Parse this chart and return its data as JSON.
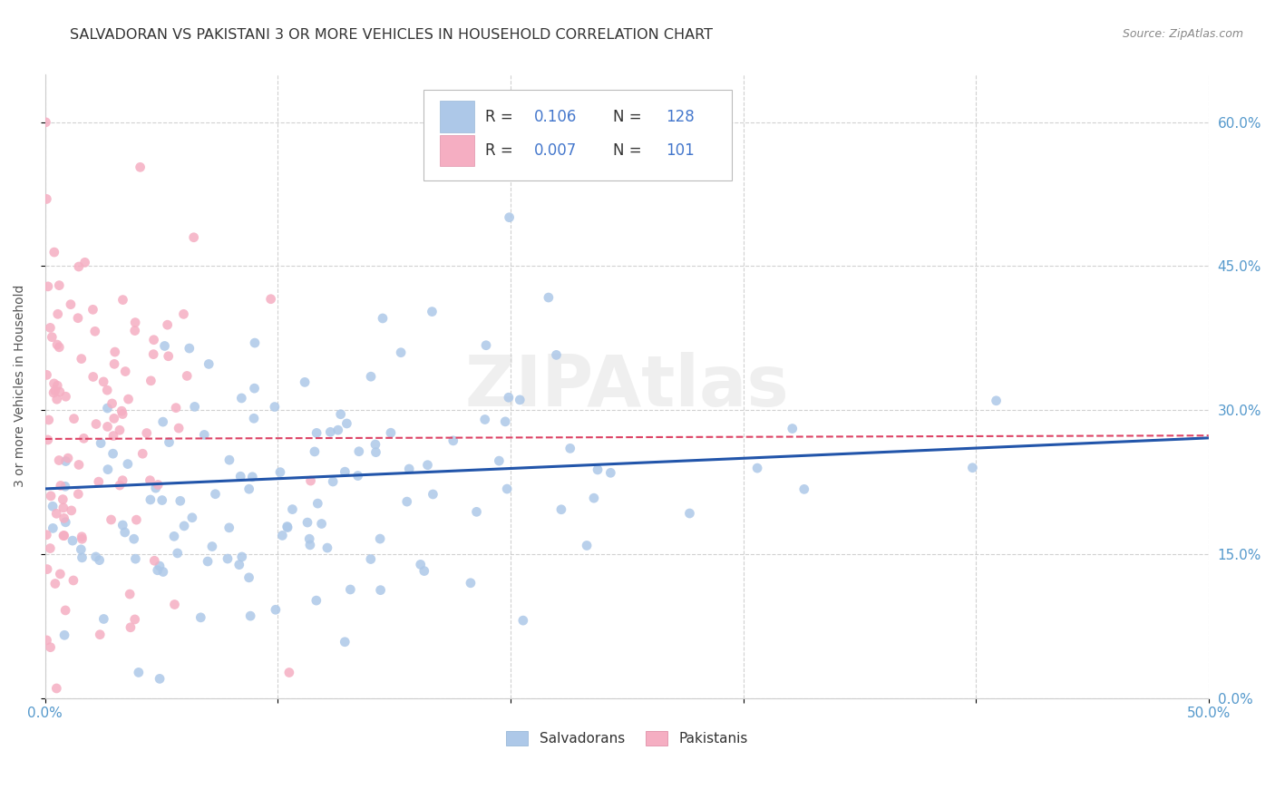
{
  "title": "SALVADORAN VS PAKISTANI 3 OR MORE VEHICLES IN HOUSEHOLD CORRELATION CHART",
  "source": "Source: ZipAtlas.com",
  "ylabel": "3 or more Vehicles in Household",
  "xlim": [
    0.0,
    0.5
  ],
  "ylim": [
    0.0,
    0.65
  ],
  "xticks": [
    0.0,
    0.1,
    0.2,
    0.3,
    0.4,
    0.5
  ],
  "xticklabels": [
    "0.0%",
    "",
    "",
    "",
    "",
    "50.0%"
  ],
  "yticks": [
    0.0,
    0.15,
    0.3,
    0.45,
    0.6
  ],
  "yticklabels": [
    "0.0%",
    "15.0%",
    "30.0%",
    "45.0%",
    "60.0%"
  ],
  "blue_R": 0.106,
  "blue_N": 128,
  "pink_R": 0.007,
  "pink_N": 101,
  "blue_color": "#adc8e8",
  "pink_color": "#f5aec2",
  "blue_line_color": "#2255aa",
  "pink_line_color": "#dd4466",
  "legend_label_blue": "Salvadorans",
  "legend_label_pink": "Pakistanis",
  "watermark": "ZIPAtlas",
  "title_fontsize": 11.5,
  "axis_label_fontsize": 10,
  "tick_fontsize": 11,
  "background_color": "#ffffff",
  "grid_color": "#cccccc",
  "blue_slope": 0.106,
  "blue_intercept": 0.218,
  "pink_slope": 0.007,
  "pink_intercept": 0.27
}
